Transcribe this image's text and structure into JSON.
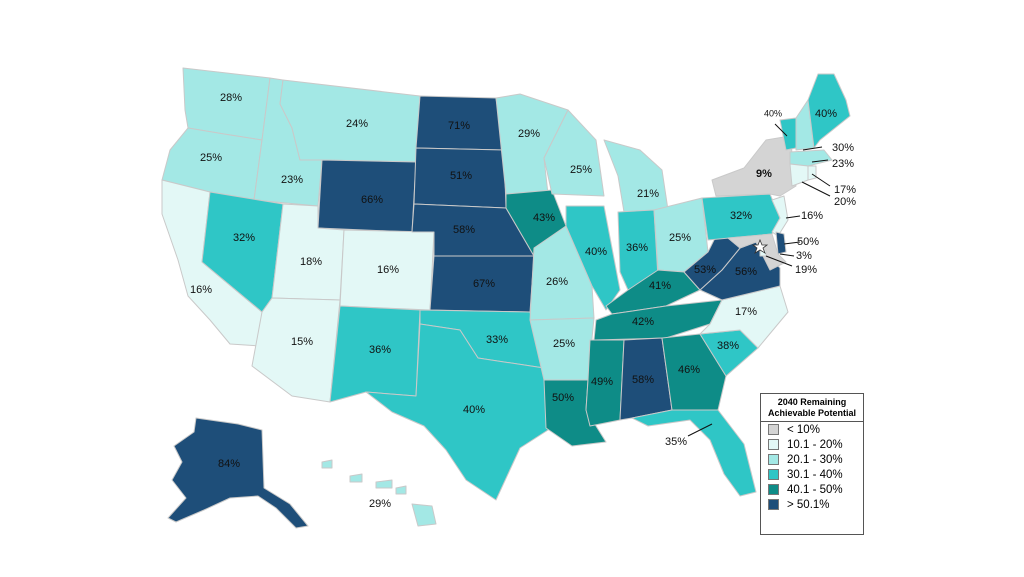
{
  "legend": {
    "title": "2040 Remaining Achievable Potential",
    "classes": [
      {
        "label": "< 10%",
        "color": "#d4d4d4"
      },
      {
        "label": "10.1 - 20%",
        "color": "#e3f8f6"
      },
      {
        "label": "20.1 - 30%",
        "color": "#a3e8e5"
      },
      {
        "label": "30.1 - 40%",
        "color": "#2fc6c6"
      },
      {
        "label": "40.1 - 50%",
        "color": "#0e8c87"
      },
      {
        "label": "> 50.1%",
        "color": "#1e4e79"
      }
    ]
  },
  "states": {
    "WA": {
      "value": "28%",
      "class": 2
    },
    "OR": {
      "value": "25%",
      "class": 2
    },
    "CA": {
      "value": "16%",
      "class": 1
    },
    "ID": {
      "value": "23%",
      "class": 2
    },
    "NV": {
      "value": "32%",
      "class": 3
    },
    "MT": {
      "value": "24%",
      "class": 2
    },
    "WY": {
      "value": "66%",
      "class": 5
    },
    "UT": {
      "value": "18%",
      "class": 1
    },
    "AZ": {
      "value": "15%",
      "class": 1
    },
    "CO": {
      "value": "16%",
      "class": 1
    },
    "NM": {
      "value": "36%",
      "class": 3
    },
    "ND": {
      "value": "71%",
      "class": 5
    },
    "SD": {
      "value": "51%",
      "class": 5
    },
    "NE": {
      "value": "58%",
      "class": 5
    },
    "KS": {
      "value": "67%",
      "class": 5
    },
    "OK": {
      "value": "33%",
      "class": 3
    },
    "TX": {
      "value": "40%",
      "class": 3
    },
    "MN": {
      "value": "29%",
      "class": 2
    },
    "IA": {
      "value": "43%",
      "class": 4
    },
    "MO": {
      "value": "26%",
      "class": 2
    },
    "AR": {
      "value": "25%",
      "class": 2
    },
    "LA": {
      "value": "50%",
      "class": 4
    },
    "WI": {
      "value": "25%",
      "class": 2
    },
    "IL": {
      "value": "40%",
      "class": 3
    },
    "MI": {
      "value": "21%",
      "class": 2
    },
    "IN": {
      "value": "36%",
      "class": 3
    },
    "OH": {
      "value": "25%",
      "class": 2
    },
    "KY": {
      "value": "41%",
      "class": 4
    },
    "TN": {
      "value": "42%",
      "class": 4
    },
    "MS": {
      "value": "49%",
      "class": 4
    },
    "AL": {
      "value": "58%",
      "class": 5
    },
    "GA": {
      "value": "46%",
      "class": 4
    },
    "FL": {
      "value": "35%",
      "class": 3
    },
    "SC": {
      "value": "38%",
      "class": 3
    },
    "NC": {
      "value": "17%",
      "class": 1
    },
    "VA": {
      "value": "56%",
      "class": 5
    },
    "WV": {
      "value": "53%",
      "class": 5
    },
    "PA": {
      "value": "32%",
      "class": 3
    },
    "NY": {
      "value": "9%",
      "class": 0
    },
    "VT": {
      "value": "40%",
      "class": 3
    },
    "NH": {
      "value": "30%",
      "class": 2
    },
    "ME": {
      "value": "40%",
      "class": 3
    },
    "MA": {
      "value": "23%",
      "class": 2
    },
    "RI": {
      "value": "17%",
      "class": 1
    },
    "CT": {
      "value": "20%",
      "class": 1
    },
    "NJ": {
      "value": "16%",
      "class": 1
    },
    "DE": {
      "value": "50%",
      "class": 5
    },
    "MD": {
      "value": "3%",
      "class": 0
    },
    "DC": {
      "value": "19%",
      "class": 1
    },
    "AK": {
      "value": "84%",
      "class": 5
    },
    "HI": {
      "value": "29%",
      "class": 2
    }
  }
}
